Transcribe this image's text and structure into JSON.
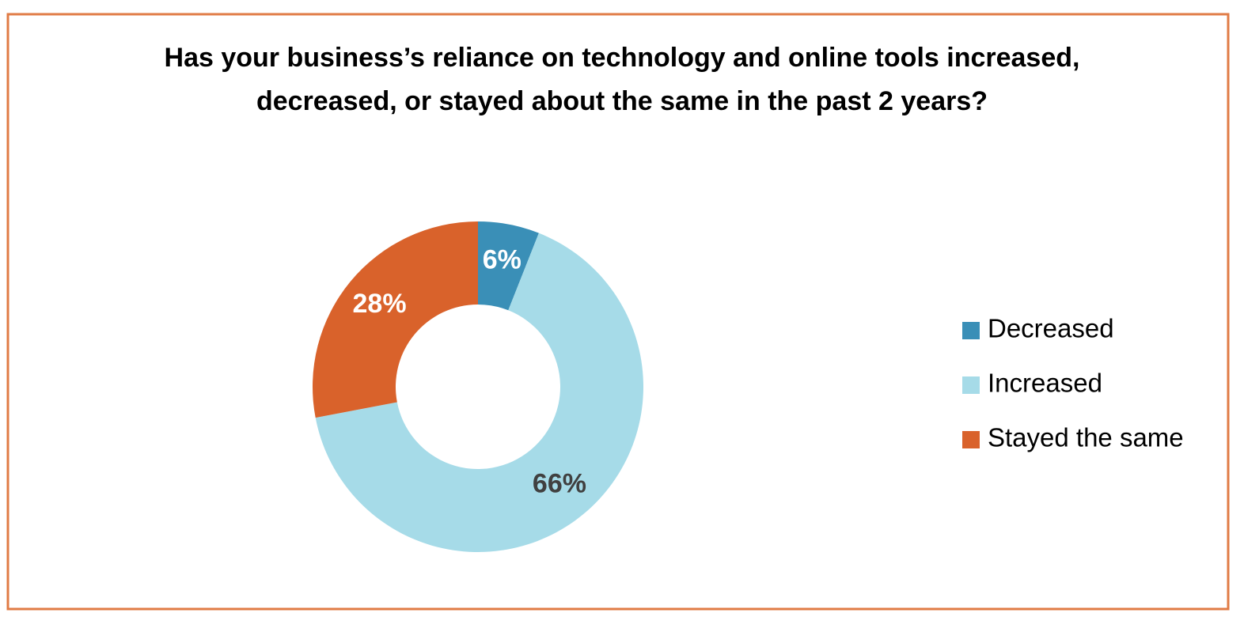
{
  "chart_data": {
    "type": "donut",
    "title": "Has your business’s reliance on technology and online tools increased, decreased, or stayed about the same in the past 2 years?",
    "categories": [
      "Decreased",
      "Increased",
      "Stayed the same"
    ],
    "values": [
      6,
      66,
      28
    ],
    "value_labels": [
      "6%",
      "66%",
      "28%"
    ],
    "colors": [
      "#3a8fb7",
      "#a6dbe8",
      "#d9622b"
    ],
    "legend": "right"
  }
}
